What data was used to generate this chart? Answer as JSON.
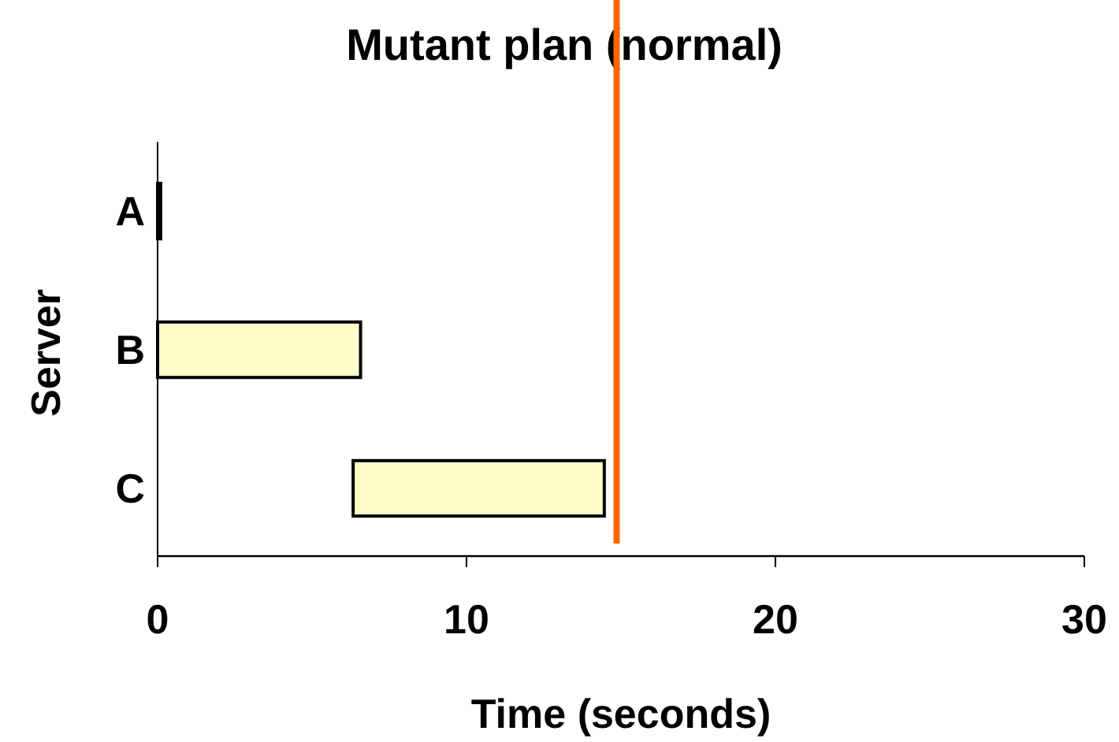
{
  "chart_data": {
    "type": "bar",
    "orientation": "horizontal",
    "title": "Mutant plan (normal)",
    "xlabel": "Time (seconds)",
    "ylabel": "Server",
    "categories": [
      "A",
      "B",
      "C"
    ],
    "base": [
      0,
      0,
      6.33
    ],
    "values": [
      0.1,
      6.57,
      8.13
    ],
    "color": "#ffffcc",
    "xlim": [
      0,
      30
    ],
    "xticks": [
      0,
      10,
      20,
      30
    ],
    "ref_lines": [
      {
        "axis": "x",
        "value": 14.86,
        "color": "#ff6600"
      }
    ]
  }
}
